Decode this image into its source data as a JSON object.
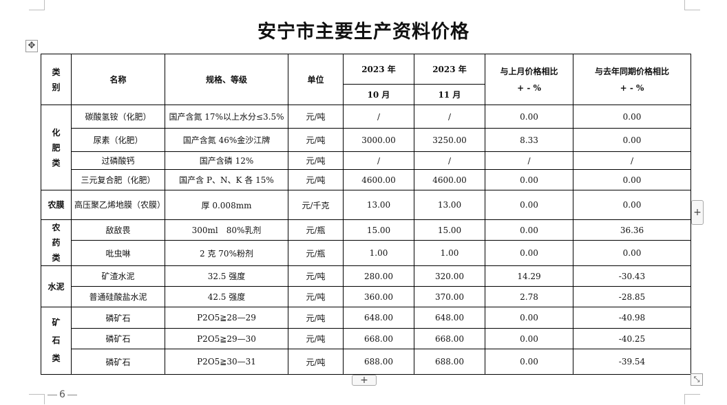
{
  "title": "安宁市主要生产资料价格",
  "page_number": "6",
  "headers": {
    "category": "类别",
    "name": "名称",
    "spec": "规格、等级",
    "unit": "单位",
    "year_oct": "2023 年",
    "year_nov": "2023 年",
    "month_oct": "10 月",
    "month_nov": "11 月",
    "mom": "与上月价格相比\n+ - %",
    "yoy": "与去年同期价格相比\n+ - %"
  },
  "categories": {
    "fertilizer": "化\n肥\n类",
    "film": "农膜",
    "pesticide": "农\n药\n类",
    "cement": "水泥",
    "ore": "矿\n\n石\n\n类"
  },
  "rows": [
    {
      "name": "碳酸氢铵（化肥）",
      "spec": "国产含氮 17%以上水分≤3.5%",
      "unit": "元/吨",
      "oct": "/",
      "nov": "/",
      "mom": "0.00",
      "yoy": "0.00"
    },
    {
      "name": "尿素（化肥）",
      "spec": "国产含氮 46%金沙江牌",
      "unit": "元/吨",
      "oct": "3000.00",
      "nov": "3250.00",
      "mom": "8.33",
      "yoy": "0.00"
    },
    {
      "name": "过磷酸钙",
      "spec": "国产含磷 12%",
      "unit": "元/吨",
      "oct": "/",
      "nov": "/",
      "mom": "/",
      "yoy": "/"
    },
    {
      "name": "三元复合肥（化肥）",
      "spec": "国产含 P、N、K 各 15%",
      "unit": "元/吨",
      "oct": "4600.00",
      "nov": "4600.00",
      "mom": "0.00",
      "yoy": "0.00"
    },
    {
      "name": "高压聚乙烯地膜（农膜）",
      "spec": "厚 0.008mm",
      "unit": "元/千克",
      "oct": "13.00",
      "nov": "13.00",
      "mom": "0.00",
      "yoy": "0.00"
    },
    {
      "name": "敌敌畏",
      "spec": "300ml　80%乳剂",
      "unit": "元/瓶",
      "oct": "15.00",
      "nov": "15.00",
      "mom": "0.00",
      "yoy": "36.36"
    },
    {
      "name": "吡虫啉",
      "spec": "2 克 70%粉剂",
      "unit": "元/瓶",
      "oct": "1.00",
      "nov": "1.00",
      "mom": "0.00",
      "yoy": "0.00"
    },
    {
      "name": "矿渣水泥",
      "spec": "32.5 强度",
      "unit": "元/吨",
      "oct": "280.00",
      "nov": "320.00",
      "mom": "14.29",
      "yoy": "-30.43"
    },
    {
      "name": "普通硅酸盐水泥",
      "spec": "42.5 强度",
      "unit": "元/吨",
      "oct": "360.00",
      "nov": "370.00",
      "mom": "2.78",
      "yoy": "-28.85"
    },
    {
      "name": "磷矿石",
      "spec": "P2O5≧28—29",
      "unit": "元/吨",
      "oct": "648.00",
      "nov": "648.00",
      "mom": "0.00",
      "yoy": "-40.98"
    },
    {
      "name": "磷矿石",
      "spec": "P2O5≧29—30",
      "unit": "元/吨",
      "oct": "668.00",
      "nov": "668.00",
      "mom": "0.00",
      "yoy": "-40.25"
    },
    {
      "name": "磷矿石",
      "spec": "P2O5≧30—31",
      "unit": "元/吨",
      "oct": "688.00",
      "nov": "688.00",
      "mom": "0.00",
      "yoy": "-39.54"
    }
  ],
  "icons": {
    "move": "move-arrows-icon",
    "add": "plus-icon",
    "resize": "resize-diagonal-icon"
  }
}
